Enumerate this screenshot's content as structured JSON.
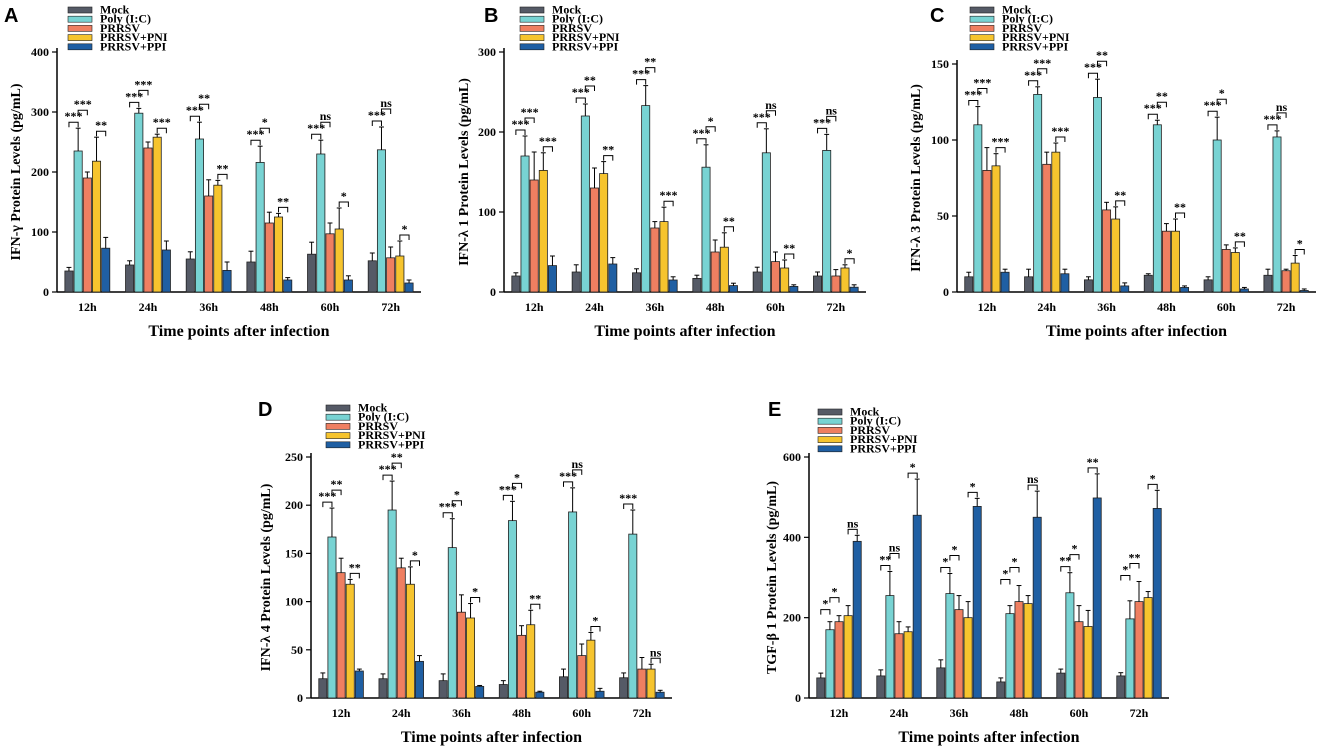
{
  "figure": {
    "legend_items": [
      "Mock",
      "Poly (I:C)",
      "PRRSV",
      "PRRSV+PNI",
      "PRRSV+PPI"
    ],
    "colors": [
      "#555a66",
      "#78d3d3",
      "#ef7f61",
      "#f6c42e",
      "#1f5fa3"
    ]
  },
  "chart_data": [
    {
      "type": "bar",
      "panel": "A",
      "title": "",
      "xlabel": "Time points after infection",
      "ylabel": "IFN-γ Protein Levels (pg/mL)",
      "ylim": [
        0,
        400
      ],
      "yticks": [
        0,
        100,
        200,
        300,
        400
      ],
      "categories": [
        "12h",
        "24h",
        "36h",
        "48h",
        "60h",
        "72h"
      ],
      "series": [
        {
          "name": "Mock",
          "values": [
            35,
            45,
            55,
            50,
            63,
            52
          ],
          "errors": [
            6,
            7,
            12,
            18,
            20,
            13
          ]
        },
        {
          "name": "Poly (I:C)",
          "values": [
            235,
            298,
            255,
            216,
            230,
            237
          ],
          "errors": [
            38,
            8,
            28,
            27,
            23,
            38
          ]
        },
        {
          "name": "PRRSV",
          "values": [
            190,
            240,
            160,
            115,
            97,
            57
          ],
          "errors": [
            10,
            10,
            27,
            18,
            18,
            18
          ]
        },
        {
          "name": "PRRSV+PNI",
          "values": [
            218,
            258,
            178,
            125,
            105,
            60
          ],
          "errors": [
            40,
            5,
            8,
            6,
            35,
            25
          ]
        },
        {
          "name": "PRRSV+PPI",
          "values": [
            73,
            70,
            36,
            20,
            20,
            15
          ],
          "errors": [
            18,
            15,
            14,
            4,
            7,
            5
          ]
        }
      ],
      "annotations": [
        [
          "***",
          "***",
          "**"
        ],
        [
          "***",
          "***",
          "***"
        ],
        [
          "***",
          "**",
          "**"
        ],
        [
          "***",
          "*",
          "**"
        ],
        [
          "***",
          "ns",
          "*"
        ],
        [
          "***",
          "ns",
          "*"
        ]
      ]
    },
    {
      "type": "bar",
      "panel": "B",
      "title": "",
      "xlabel": "Time points after infection",
      "ylabel": "IFN-λ 1 Protein Levels (pg/mL)",
      "ylim": [
        0,
        300
      ],
      "yticks": [
        0,
        100,
        200,
        300
      ],
      "categories": [
        "12h",
        "24h",
        "36h",
        "48h",
        "60h",
        "72h"
      ],
      "series": [
        {
          "name": "Mock",
          "values": [
            20,
            25,
            24,
            17,
            25,
            20
          ],
          "errors": [
            4,
            9,
            5,
            4,
            6,
            5
          ]
        },
        {
          "name": "Poly (I:C)",
          "values": [
            170,
            220,
            233,
            156,
            174,
            177
          ],
          "errors": [
            25,
            15,
            25,
            28,
            30,
            20
          ]
        },
        {
          "name": "PRRSV",
          "values": [
            140,
            130,
            80,
            50,
            38,
            20
          ],
          "errors": [
            35,
            25,
            8,
            15,
            12,
            8
          ]
        },
        {
          "name": "PRRSV+PNI",
          "values": [
            152,
            148,
            88,
            56,
            30,
            30
          ],
          "errors": [
            22,
            15,
            18,
            18,
            10,
            4
          ]
        },
        {
          "name": "PRRSV+PPI",
          "values": [
            33,
            35,
            15,
            8,
            7,
            6
          ],
          "errors": [
            12,
            8,
            4,
            3,
            2,
            3
          ]
        }
      ],
      "annotations": [
        [
          "***",
          "***",
          "***"
        ],
        [
          "***",
          "**",
          "**"
        ],
        [
          "***",
          "**",
          "***"
        ],
        [
          "***",
          "*",
          "**"
        ],
        [
          "***",
          "ns",
          "**"
        ],
        [
          "***",
          "ns",
          "*"
        ]
      ]
    },
    {
      "type": "bar",
      "panel": "C",
      "title": "",
      "xlabel": "Time points after infection",
      "ylabel": "IFN-λ 3 Protein Levels (pg/mL)",
      "ylim": [
        0,
        150
      ],
      "yticks": [
        0,
        50,
        100,
        150
      ],
      "categories": [
        "12h",
        "24h",
        "36h",
        "48h",
        "60h",
        "72h"
      ],
      "series": [
        {
          "name": "Mock",
          "values": [
            10,
            10,
            8,
            11,
            8,
            11
          ],
          "errors": [
            3,
            5,
            2,
            1,
            2,
            4
          ]
        },
        {
          "name": "Poly (I:C)",
          "values": [
            110,
            130,
            128,
            110,
            100,
            102
          ],
          "errors": [
            12,
            5,
            12,
            3,
            15,
            4
          ]
        },
        {
          "name": "PRRSV",
          "values": [
            80,
            84,
            54,
            40,
            28,
            14
          ],
          "errors": [
            15,
            8,
            5,
            5,
            3,
            1
          ]
        },
        {
          "name": "PRRSV+PNI",
          "values": [
            83,
            92,
            48,
            40,
            26,
            19
          ],
          "errors": [
            8,
            6,
            8,
            8,
            3,
            5
          ]
        },
        {
          "name": "PRRSV+PPI",
          "values": [
            13,
            12,
            4,
            3,
            2,
            1
          ],
          "errors": [
            2,
            3,
            2,
            1,
            1,
            1
          ]
        }
      ],
      "annotations": [
        [
          "***",
          "***",
          "***"
        ],
        [
          "***",
          "***",
          "***"
        ],
        [
          "***",
          "**",
          "**"
        ],
        [
          "***",
          "**",
          "**"
        ],
        [
          "***",
          "*",
          "**"
        ],
        [
          "***",
          "ns",
          "*"
        ]
      ]
    },
    {
      "type": "bar",
      "panel": "D",
      "title": "",
      "xlabel": "Time points after infection",
      "ylabel": "IFN-λ 4 Protein Levels (pg/mL)",
      "ylim": [
        0,
        250
      ],
      "yticks": [
        0,
        50,
        100,
        150,
        200,
        250
      ],
      "categories": [
        "12h",
        "24h",
        "36h",
        "48h",
        "60h",
        "72h"
      ],
      "series": [
        {
          "name": "Mock",
          "values": [
            20,
            20,
            18,
            14,
            22,
            21
          ],
          "errors": [
            6,
            5,
            7,
            4,
            8,
            5
          ]
        },
        {
          "name": "Poly (I:C)",
          "values": [
            167,
            195,
            156,
            184,
            193,
            170
          ],
          "errors": [
            30,
            30,
            30,
            20,
            25,
            25
          ]
        },
        {
          "name": "PRRSV",
          "values": [
            130,
            135,
            89,
            65,
            44,
            30
          ],
          "errors": [
            15,
            10,
            18,
            10,
            12,
            12
          ]
        },
        {
          "name": "PRRSV+PNI",
          "values": [
            118,
            118,
            83,
            76,
            60,
            30
          ],
          "errors": [
            5,
            18,
            15,
            15,
            8,
            5
          ]
        },
        {
          "name": "PRRSV+PPI",
          "values": [
            28,
            38,
            12,
            6,
            7,
            6
          ],
          "errors": [
            2,
            6,
            1,
            1,
            3,
            2
          ]
        }
      ],
      "annotations": [
        [
          "***",
          "**",
          "**"
        ],
        [
          "***",
          "**",
          "*"
        ],
        [
          "***",
          "*",
          "*"
        ],
        [
          "***",
          "*",
          "**"
        ],
        [
          "***",
          "ns",
          "*"
        ],
        [
          "***",
          "",
          "ns"
        ]
      ]
    },
    {
      "type": "bar",
      "panel": "E",
      "title": "",
      "xlabel": "Time points after infection",
      "ylabel": "TGF-β 1 Protein Levels (pg/mL)",
      "ylim": [
        0,
        600
      ],
      "yticks": [
        0,
        200,
        400,
        600
      ],
      "categories": [
        "12h",
        "24h",
        "36h",
        "48h",
        "60h",
        "72h"
      ],
      "series": [
        {
          "name": "Mock",
          "values": [
            50,
            55,
            75,
            40,
            62,
            55
          ],
          "errors": [
            12,
            15,
            20,
            10,
            10,
            8
          ]
        },
        {
          "name": "Poly (I:C)",
          "values": [
            170,
            255,
            260,
            210,
            262,
            197
          ],
          "errors": [
            20,
            60,
            50,
            20,
            50,
            45
          ]
        },
        {
          "name": "PRRSV",
          "values": [
            190,
            160,
            220,
            240,
            190,
            240
          ],
          "errors": [
            15,
            30,
            35,
            40,
            40,
            50
          ]
        },
        {
          "name": "PRRSV+PNI",
          "values": [
            205,
            165,
            200,
            235,
            178,
            250
          ],
          "errors": [
            25,
            12,
            40,
            20,
            40,
            15
          ]
        },
        {
          "name": "PRRSV+PPI",
          "values": [
            390,
            455,
            477,
            450,
            498,
            472
          ],
          "errors": [
            15,
            90,
            20,
            65,
            60,
            45
          ]
        }
      ],
      "annotations": [
        [
          "*",
          "*",
          "ns"
        ],
        [
          "**",
          "ns",
          "*"
        ],
        [
          "*",
          "*",
          "*"
        ],
        [
          "*",
          "*",
          "ns"
        ],
        [
          "**",
          "*",
          "**"
        ],
        [
          "*",
          "**",
          "*"
        ]
      ]
    }
  ]
}
